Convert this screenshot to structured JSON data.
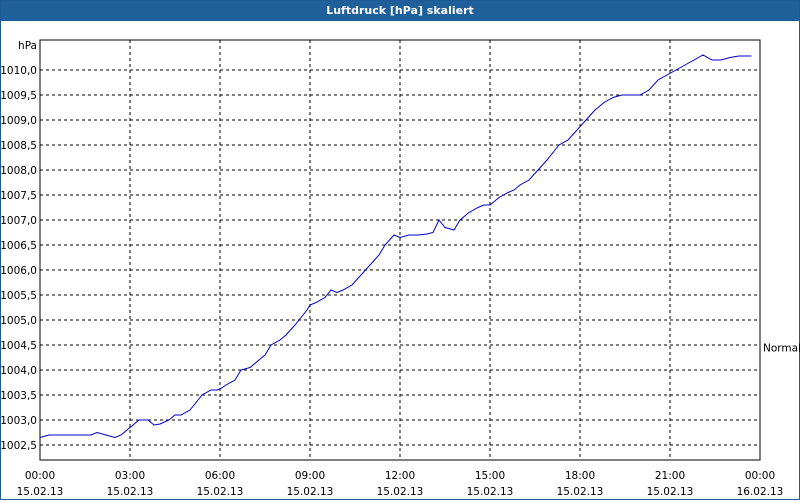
{
  "window": {
    "title": "Luftdruck [hPa] skaliert"
  },
  "colors": {
    "titlebar": "#1f5f9a",
    "line": "#0000cc",
    "grid": "#000000"
  },
  "chart_data": {
    "type": "line",
    "title": "Luftdruck [hPa] skaliert",
    "ylabel": "hPa",
    "ylim": [
      1002.2,
      1010.6
    ],
    "grid": true,
    "legend_position": "right",
    "legend_label": "Normal",
    "y_ticks": [
      "1002,5",
      "1003,0",
      "1003,5",
      "1004,0",
      "1004,5",
      "1005,0",
      "1005,5",
      "1006,0",
      "1006,5",
      "1007,0",
      "1007,5",
      "1008,0",
      "1008,5",
      "1009,0",
      "1009,5",
      "1010,0"
    ],
    "y_tick_values": [
      1002.5,
      1003.0,
      1003.5,
      1004.0,
      1004.5,
      1005.0,
      1005.5,
      1006.0,
      1006.5,
      1007.0,
      1007.5,
      1008.0,
      1008.5,
      1009.0,
      1009.5,
      1010.0
    ],
    "x_ticks": [
      {
        "time": "00:00",
        "date": "15.02.13"
      },
      {
        "time": "03:00",
        "date": "15.02.13"
      },
      {
        "time": "06:00",
        "date": "15.02.13"
      },
      {
        "time": "09:00",
        "date": "15.02.13"
      },
      {
        "time": "12:00",
        "date": "15.02.13"
      },
      {
        "time": "15:00",
        "date": "15.02.13"
      },
      {
        "time": "18:00",
        "date": "15.02.13"
      },
      {
        "time": "21:00",
        "date": "15.02.13"
      },
      {
        "time": "00:00",
        "date": "16.02.13"
      }
    ],
    "x_range_hours": [
      0,
      24
    ],
    "series": [
      {
        "x_hours": [
          0.0,
          0.3,
          0.9,
          1.4,
          1.7,
          1.9,
          2.2,
          2.5,
          2.7,
          3.0,
          3.3,
          3.6,
          3.8,
          4.0,
          4.3,
          4.5,
          4.7,
          5.0,
          5.2,
          5.4,
          5.7,
          5.9,
          6.0,
          6.2,
          6.5,
          6.7,
          7.0,
          7.3,
          7.5,
          7.7,
          8.0,
          8.2,
          8.5,
          8.7,
          8.9,
          9.0,
          9.2,
          9.5,
          9.7,
          9.9,
          10.1,
          10.4,
          10.7,
          11.0,
          11.3,
          11.5,
          11.8,
          12.0,
          12.3,
          12.6,
          12.9,
          13.1,
          13.3,
          13.5,
          13.8,
          14.0,
          14.3,
          14.6,
          14.8,
          15.0,
          15.3,
          15.6,
          15.8,
          16.0,
          16.3,
          16.6,
          16.9,
          17.1,
          17.3,
          17.6,
          17.9,
          18.2,
          18.5,
          18.8,
          19.1,
          19.4,
          19.7,
          20.0,
          20.3,
          20.6,
          20.9,
          21.2,
          21.5,
          21.8,
          22.1,
          22.4,
          22.7,
          23.0,
          23.3,
          23.7
        ],
        "values": [
          1002.65,
          1002.7,
          1002.7,
          1002.7,
          1002.7,
          1002.75,
          1002.7,
          1002.65,
          1002.7,
          1002.85,
          1003.0,
          1003.0,
          1002.9,
          1002.92,
          1003.0,
          1003.1,
          1003.1,
          1003.2,
          1003.35,
          1003.5,
          1003.6,
          1003.6,
          1003.62,
          1003.7,
          1003.8,
          1004.0,
          1004.05,
          1004.2,
          1004.3,
          1004.5,
          1004.6,
          1004.7,
          1004.9,
          1005.05,
          1005.2,
          1005.3,
          1005.35,
          1005.45,
          1005.6,
          1005.55,
          1005.6,
          1005.7,
          1005.9,
          1006.1,
          1006.3,
          1006.5,
          1006.7,
          1006.65,
          1006.7,
          1006.7,
          1006.72,
          1006.75,
          1007.0,
          1006.85,
          1006.8,
          1007.0,
          1007.15,
          1007.25,
          1007.3,
          1007.3,
          1007.45,
          1007.55,
          1007.6,
          1007.7,
          1007.8,
          1008.0,
          1008.2,
          1008.35,
          1008.5,
          1008.6,
          1008.8,
          1009.0,
          1009.2,
          1009.35,
          1009.45,
          1009.5,
          1009.5,
          1009.5,
          1009.6,
          1009.8,
          1009.9,
          1010.0,
          1010.1,
          1010.2,
          1010.3,
          1010.2,
          1010.2,
          1010.25,
          1010.28,
          1010.28
        ]
      }
    ]
  }
}
